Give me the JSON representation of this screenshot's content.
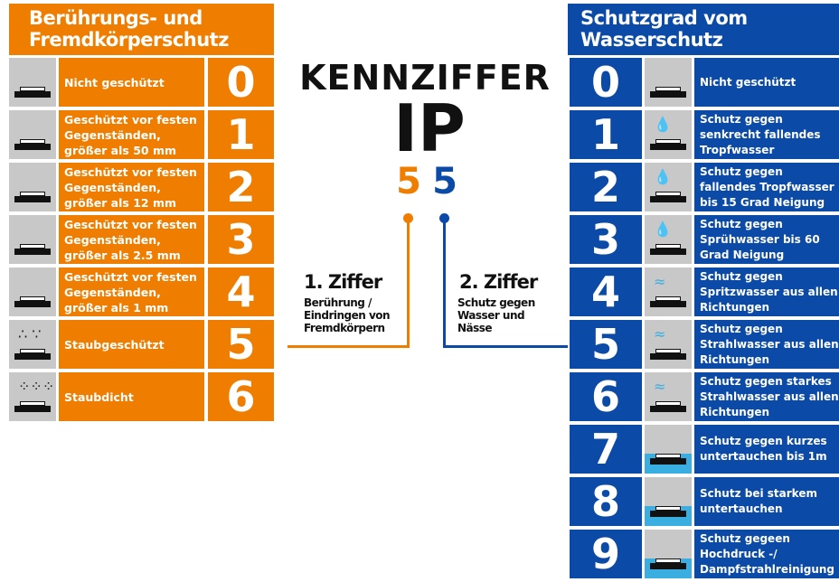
{
  "left": {
    "title_line1": "Berührungs- und",
    "title_line2": "Fremdkörperschutz",
    "color": "#ee7d00",
    "rows": [
      {
        "num": "0",
        "text": "Nicht geschützt",
        "icon": "hand-lightning-icon"
      },
      {
        "num": "1",
        "text": "Geschützt vor festen Gegenständen, größer als 50 mm",
        "icon": "hand-icon"
      },
      {
        "num": "2",
        "text": "Geschützt vor festen Gegenständen, größer als 12 mm",
        "icon": "finger-icon"
      },
      {
        "num": "3",
        "text": "Geschützt vor festen Gegenständen, größer als 2.5 mm",
        "icon": "tool-icon"
      },
      {
        "num": "4",
        "text": "Geschützt vor festen Gegenständen, größer als 1 mm",
        "icon": "wire-icon"
      },
      {
        "num": "5",
        "text": "Staubgeschützt",
        "icon": "dust-icon"
      },
      {
        "num": "6",
        "text": "Staubdicht",
        "icon": "dense-dust-icon"
      }
    ]
  },
  "center": {
    "title": "KENNZIFFER",
    "code": "IP",
    "digit1": "5",
    "digit2": "5",
    "first": {
      "title": "1. Ziffer",
      "desc": "Berührung / Eindringen von Fremdkörpern"
    },
    "second": {
      "title": "2. Ziffer",
      "desc": "Schutz gegen Wasser und Nässe"
    }
  },
  "right": {
    "title_line1": "Schutzgrad vom",
    "title_line2": "Wasserschutz",
    "color": "#0b4aa6",
    "rows": [
      {
        "num": "0",
        "text": "Nicht geschützt",
        "icon": "surface-icon"
      },
      {
        "num": "1",
        "text": "Schutz gegen senkrecht fallendes Tropfwasser",
        "icon": "drops-icon"
      },
      {
        "num": "2",
        "text": "Schutz gegen fallendes Tropfwasser bis 15 Grad Neigung",
        "icon": "drops-15-icon"
      },
      {
        "num": "3",
        "text": "Schutz gegen Sprühwasser bis 60 Grad Neigung",
        "icon": "spray-60-icon"
      },
      {
        "num": "4",
        "text": "Schutz gegen Spritzwasser aus allen Richtungen",
        "icon": "splash-icon"
      },
      {
        "num": "5",
        "text": "Schutz gegen Strahlwasser aus allen Richtungen",
        "icon": "jet-icon"
      },
      {
        "num": "6",
        "text": "Schutz gegen starkes Strahlwasser aus allen Richtungen",
        "icon": "strong-jet-icon"
      },
      {
        "num": "7",
        "text": "Schutz gegen kurzes untertauchen bis 1m",
        "icon": "immersion-icon"
      },
      {
        "num": "8",
        "text": "Schutz bei starkem untertauchen",
        "icon": "submersion-icon"
      },
      {
        "num": "9",
        "text": "Schutz gegeen Hochdruck -/ Dampfstrahlreinigung",
        "icon": "high-pressure-icon"
      }
    ]
  }
}
